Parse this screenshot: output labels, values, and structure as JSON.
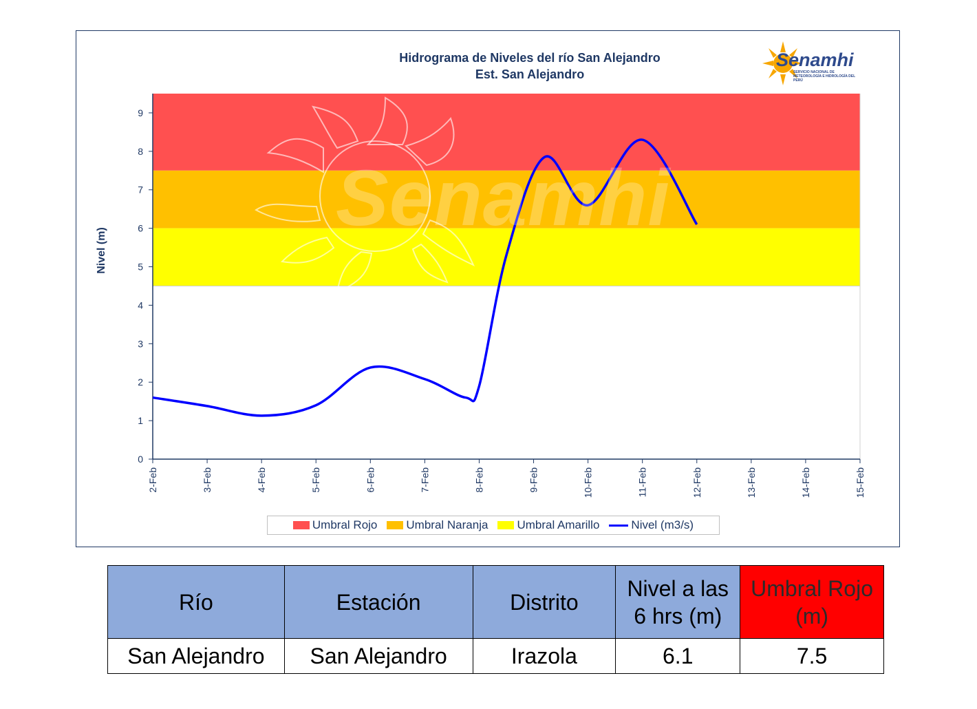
{
  "chart_data": {
    "type": "line",
    "title": "Hidrograma  de Niveles  del río San Alejandro",
    "subtitle": "Est. San Alejandro",
    "ylabel": "Nivel (m)",
    "xlabel": "",
    "ylim": [
      0,
      9.5
    ],
    "yticks": [
      "0",
      "1",
      "2",
      "3",
      "4",
      "5",
      "6",
      "7",
      "8",
      "9"
    ],
    "categories": [
      "2-Feb",
      "3-Feb",
      "4-Feb",
      "5-Feb",
      "6-Feb",
      "7-Feb",
      "8-Feb",
      "9-Feb",
      "10-Feb",
      "11-Feb",
      "12-Feb",
      "13-Feb",
      "14-Feb",
      "15-Feb"
    ],
    "bands": [
      {
        "name": "Umbral Rojo",
        "from": 7.5,
        "to": 9.5,
        "color": "#ff5050"
      },
      {
        "name": "Umbral Naranja",
        "from": 6.0,
        "to": 7.5,
        "color": "#ffc000"
      },
      {
        "name": "Umbral Amarillo",
        "from": 4.5,
        "to": 6.0,
        "color": "#ffff00"
      }
    ],
    "series": [
      {
        "name": "Nivel (m3/s)",
        "color": "#0000ff",
        "x": [
          0,
          1,
          2,
          3,
          4,
          5,
          5.75,
          6,
          6.5,
          7.2,
          8,
          9,
          10
        ],
        "values": [
          1.6,
          1.38,
          1.13,
          1.4,
          2.38,
          2.08,
          1.6,
          1.9,
          5.3,
          7.85,
          6.6,
          8.3,
          6.1
        ]
      }
    ],
    "legend": "bottom",
    "grid": false
  },
  "logo": {
    "word": "Senamhi",
    "subtext": "SERVICIO NACIONAL DE METEOROLOGÍA E HIDROLOGÍA DEL PERÚ"
  },
  "watermark": {
    "word": "Senamhi"
  },
  "table": {
    "headers": [
      "Río",
      "Estación",
      "Distrito",
      "Nivel a las 6 hrs (m)",
      "Umbral Rojo (m)"
    ],
    "row": [
      "San Alejandro",
      "San Alejandro",
      "Irazola",
      "6.1",
      "7.5"
    ]
  }
}
